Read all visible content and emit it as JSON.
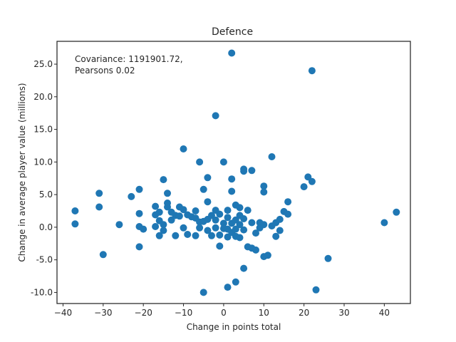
{
  "chart_data": {
    "type": "scatter",
    "title": "Defence",
    "xlabel": "Change in points total",
    "ylabel": "Change in average player value (millions)",
    "xlim": [
      -41.5,
      46.5
    ],
    "ylim": [
      -11.7,
      28.5
    ],
    "xticks": [
      -40,
      -30,
      -20,
      -10,
      0,
      10,
      20,
      30,
      40
    ],
    "xtick_labels": [
      "−40",
      "−30",
      "−20",
      "−10",
      "0",
      "10",
      "20",
      "30",
      "40"
    ],
    "yticks": [
      -10,
      -5,
      0,
      5,
      10,
      15,
      20,
      25
    ],
    "ytick_labels": [
      "-10.0",
      "-5.0",
      "0.0",
      "5.0",
      "10.0",
      "15.0",
      "20.0",
      "25.0"
    ],
    "annotation": [
      "Covariance: 1191901.72,",
      "Pearsons 0.02"
    ],
    "grid": false,
    "marker_color": "#1f77b4",
    "points": [
      [
        -37,
        2.5
      ],
      [
        -37,
        0.5
      ],
      [
        -31,
        5.2
      ],
      [
        -31,
        3.1
      ],
      [
        -30,
        -4.2
      ],
      [
        -26,
        0.4
      ],
      [
        -23,
        4.7
      ],
      [
        -21,
        5.8
      ],
      [
        -21,
        2.1
      ],
      [
        -21,
        0.1
      ],
      [
        -21,
        -3.0
      ],
      [
        -20,
        -0.3
      ],
      [
        -17,
        3.2
      ],
      [
        -17,
        1.9
      ],
      [
        -17,
        0.1
      ],
      [
        -16,
        2.3
      ],
      [
        -16,
        1.0
      ],
      [
        -16,
        -1.3
      ],
      [
        -15,
        7.3
      ],
      [
        -15,
        0.4
      ],
      [
        -15,
        -0.5
      ],
      [
        -14,
        5.2
      ],
      [
        -14,
        3.7
      ],
      [
        -14,
        3.1
      ],
      [
        -13,
        2.3
      ],
      [
        -13,
        1.1
      ],
      [
        -12,
        1.8
      ],
      [
        -12,
        -1.3
      ],
      [
        -11,
        3.1
      ],
      [
        -11,
        1.7
      ],
      [
        -10,
        12.0
      ],
      [
        -10,
        2.7
      ],
      [
        -10,
        -0.1
      ],
      [
        -9,
        1.9
      ],
      [
        -9,
        -1.1
      ],
      [
        -8,
        1.6
      ],
      [
        -7,
        2.5
      ],
      [
        -7,
        1.4
      ],
      [
        -7,
        -1.3
      ],
      [
        -6,
        10.0
      ],
      [
        -6,
        0.8
      ],
      [
        -6,
        -0.1
      ],
      [
        -5,
        5.8
      ],
      [
        -5,
        0.9
      ],
      [
        -5,
        -10.0
      ],
      [
        -4,
        7.6
      ],
      [
        -4,
        3.9
      ],
      [
        -4,
        1.2
      ],
      [
        -4,
        -0.5
      ],
      [
        -3,
        1.8
      ],
      [
        -3,
        -1.3
      ],
      [
        -2,
        17.1
      ],
      [
        -2,
        2.6
      ],
      [
        -2,
        1.1
      ],
      [
        -2,
        -0.1
      ],
      [
        -1,
        2.0
      ],
      [
        -1,
        -1.2
      ],
      [
        -1,
        -2.9
      ],
      [
        0,
        10.0
      ],
      [
        0,
        0.6
      ],
      [
        0,
        -0.2
      ],
      [
        1,
        2.6
      ],
      [
        1,
        1.5
      ],
      [
        1,
        -0.3
      ],
      [
        1,
        -1.5
      ],
      [
        1,
        -9.2
      ],
      [
        2,
        26.7
      ],
      [
        2,
        7.4
      ],
      [
        2,
        5.5
      ],
      [
        2,
        0.6
      ],
      [
        2,
        -0.8
      ],
      [
        3,
        3.4
      ],
      [
        3,
        1.1
      ],
      [
        3,
        -0.3
      ],
      [
        3,
        -1.4
      ],
      [
        3,
        -8.4
      ],
      [
        4,
        3.0
      ],
      [
        4,
        1.8
      ],
      [
        4,
        0.4
      ],
      [
        4,
        -1.6
      ],
      [
        5,
        8.9
      ],
      [
        5,
        8.6
      ],
      [
        5,
        1.3
      ],
      [
        5,
        -0.4
      ],
      [
        5,
        -6.3
      ],
      [
        6,
        2.6
      ],
      [
        6,
        -3.0
      ],
      [
        7,
        8.7
      ],
      [
        7,
        0.7
      ],
      [
        7,
        -3.2
      ],
      [
        8,
        -0.9
      ],
      [
        8,
        -3.5
      ],
      [
        9,
        0.7
      ],
      [
        9,
        -0.1
      ],
      [
        10,
        6.3
      ],
      [
        10,
        5.4
      ],
      [
        10,
        0.4
      ],
      [
        10,
        -4.5
      ],
      [
        11,
        -4.3
      ],
      [
        12,
        10.8
      ],
      [
        12,
        0.2
      ],
      [
        13,
        0.7
      ],
      [
        13,
        -1.4
      ],
      [
        14,
        1.2
      ],
      [
        14,
        -0.5
      ],
      [
        15,
        2.4
      ],
      [
        16,
        3.9
      ],
      [
        16,
        2.0
      ],
      [
        20,
        6.2
      ],
      [
        21,
        7.7
      ],
      [
        22,
        24.0
      ],
      [
        22,
        7.0
      ],
      [
        23,
        -9.6
      ],
      [
        26,
        -4.8
      ],
      [
        40,
        0.7
      ],
      [
        43,
        2.3
      ]
    ]
  }
}
